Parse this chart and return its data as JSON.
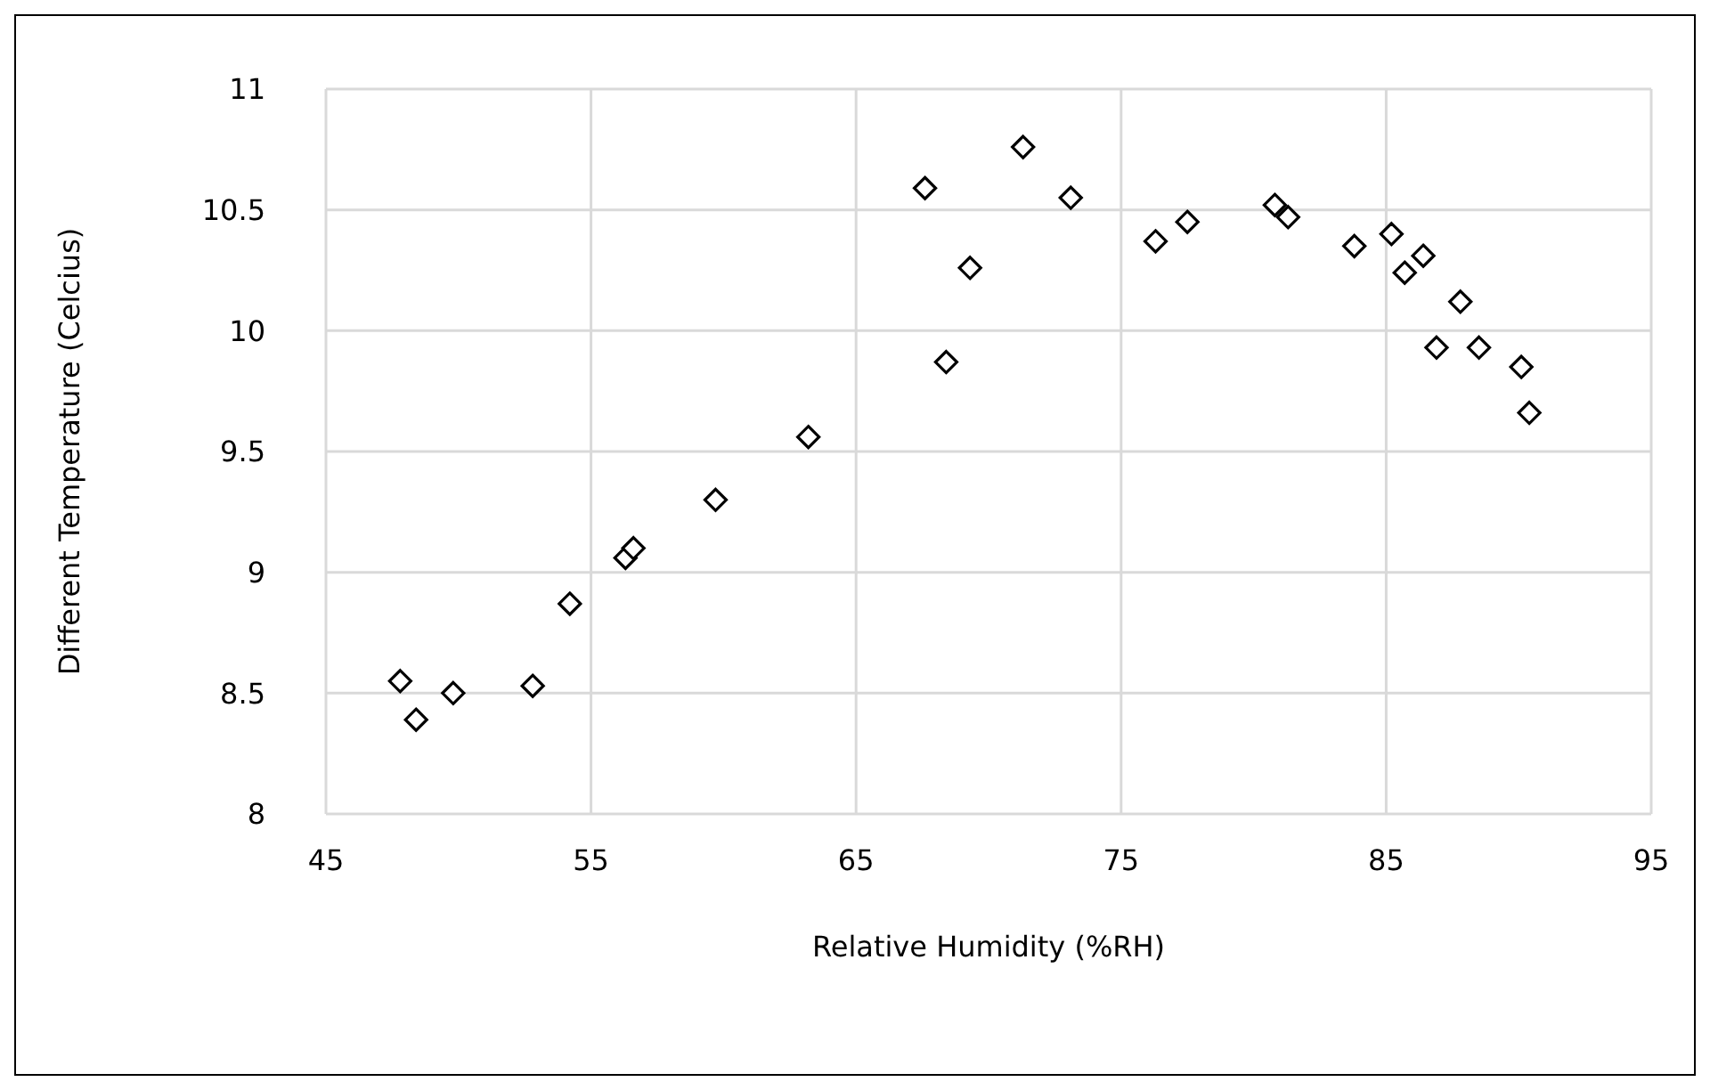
{
  "chart_data": {
    "type": "scatter",
    "xlabel": "Relative Humidity (%RH)",
    "ylabel": "Different Temperature (Celcius)",
    "x": [
      47.8,
      48.4,
      49.8,
      52.8,
      54.2,
      56.3,
      56.6,
      59.7,
      63.2,
      67.6,
      68.4,
      69.3,
      71.3,
      73.1,
      76.3,
      77.5,
      80.8,
      81.3,
      83.8,
      85.2,
      86.4,
      85.7,
      87.8,
      86.9,
      88.5,
      90.1,
      90.4
    ],
    "series": [
      {
        "color": "#000000",
        "values": [
          8.55,
          8.39,
          8.5,
          8.53,
          8.87,
          9.06,
          9.1,
          9.3,
          9.56,
          10.59,
          9.87,
          10.26,
          10.76,
          10.55,
          10.37,
          10.45,
          10.52,
          10.47,
          10.35,
          10.4,
          10.31,
          10.24,
          10.12,
          9.93,
          9.93,
          9.85,
          9.66
        ]
      }
    ],
    "xlim": [
      45,
      95
    ],
    "xticks": [
      45,
      55,
      65,
      75,
      85,
      95
    ],
    "ylim": [
      8,
      11
    ],
    "yticks": [
      8,
      8.5,
      9,
      9.5,
      10,
      10.5,
      11
    ],
    "grid": true,
    "marker": "diamond"
  }
}
